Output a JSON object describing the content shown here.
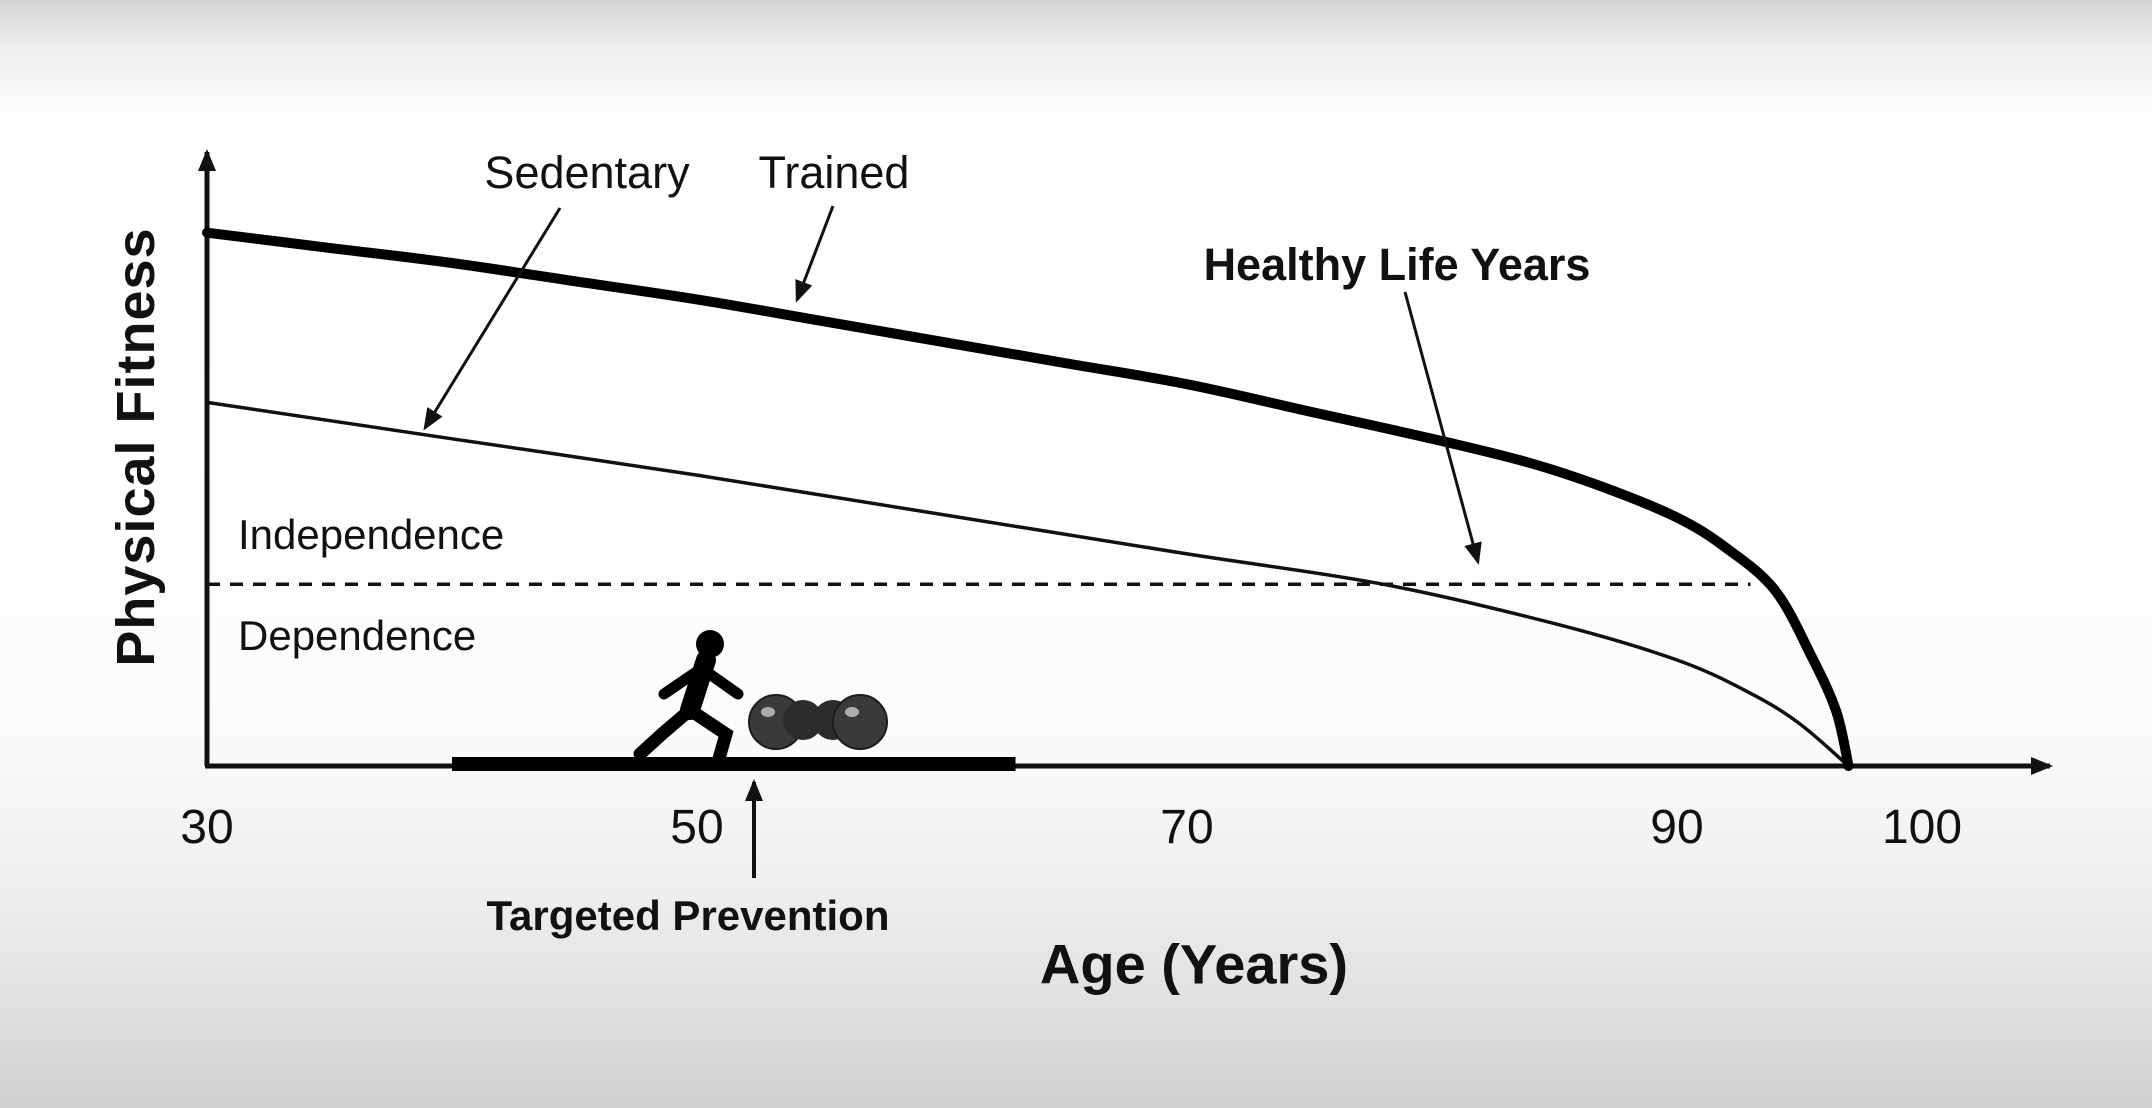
{
  "chart_data": {
    "type": "line",
    "title": "",
    "xlabel": "Age (Years)",
    "ylabel": "Physical Fitness",
    "x_ticks": [
      30,
      50,
      70,
      90,
      100
    ],
    "xlim": [
      30,
      105
    ],
    "ylim": [
      0,
      100
    ],
    "grid": false,
    "legend": "inline annotations with arrows",
    "series": [
      {
        "name": "Trained",
        "line_weight": "thick",
        "points": [
          [
            30,
            88
          ],
          [
            35,
            85.5
          ],
          [
            40,
            83
          ],
          [
            45,
            80
          ],
          [
            50,
            77
          ],
          [
            55,
            73.5
          ],
          [
            60,
            70
          ],
          [
            65,
            66.5
          ],
          [
            70,
            63
          ],
          [
            75,
            58.5
          ],
          [
            80,
            54
          ],
          [
            84,
            50
          ],
          [
            87,
            46
          ],
          [
            90,
            41
          ],
          [
            92,
            36
          ],
          [
            94,
            29
          ],
          [
            95.5,
            18
          ],
          [
            96.5,
            9
          ],
          [
            97,
            0
          ]
        ]
      },
      {
        "name": "Sedentary",
        "line_weight": "thin",
        "points": [
          [
            30,
            60
          ],
          [
            40,
            54
          ],
          [
            50,
            48
          ],
          [
            60,
            41.5
          ],
          [
            70,
            35
          ],
          [
            78,
            30
          ],
          [
            85,
            23.5
          ],
          [
            90,
            17.5
          ],
          [
            93,
            12
          ],
          [
            95,
            7
          ],
          [
            97,
            0
          ]
        ]
      }
    ],
    "threshold": {
      "value": 30,
      "style": "dashed",
      "age_start": 30,
      "age_end": 93,
      "label_above": "Independence",
      "label_below": "Dependence"
    },
    "annotations": [
      {
        "text": "Sedentary",
        "points_to": "thin Sedentary curve"
      },
      {
        "text": "Trained",
        "points_to": "thick Trained curve"
      },
      {
        "text": "Healthy Life Years",
        "points_to": "independence threshold line"
      },
      {
        "text": "Targeted Prevention",
        "points_to": "thick bar on age axis"
      }
    ],
    "prevention_bar": {
      "age_start": 40,
      "age_end": 63
    },
    "icons": [
      {
        "name": "runner-icon",
        "meaning": "running person pictogram"
      },
      {
        "name": "dumbbell-icon",
        "meaning": "dumbbell weights pictogram"
      }
    ],
    "colors": {
      "line": "#000000",
      "text": "#111111"
    }
  }
}
